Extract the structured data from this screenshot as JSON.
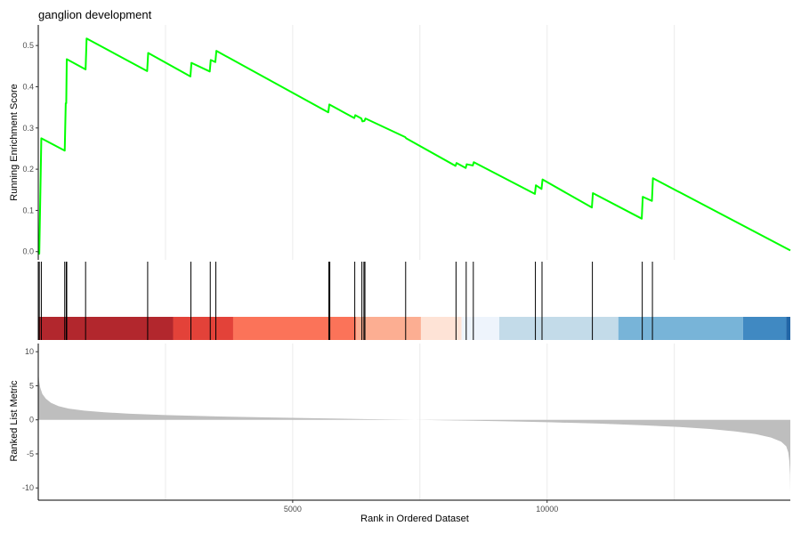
{
  "chart_data": {
    "type": "line",
    "title": "ganglion development",
    "xlabel": "Rank in Ordered Dataset",
    "n_genes": 14780,
    "xlim": [
      0,
      14780
    ],
    "x_ticks": [
      5000,
      10000
    ],
    "x_tick_labels": [
      "5000",
      "10000"
    ],
    "grid_lines_x": [
      2500,
      5000,
      7500,
      10000,
      12500
    ],
    "colors": {
      "running_score": "#00ff00",
      "ranked_metric_fill": "#bebebe",
      "hit_line": "#000000",
      "grid": "#ebebeb"
    },
    "running_score": {
      "ylabel": "Running Enrichment Score",
      "ylim": [
        -0.02,
        0.55
      ],
      "y_ticks": [
        0.0,
        0.1,
        0.2,
        0.3,
        0.4,
        0.5
      ],
      "y_tick_labels": [
        "0.0",
        "0.1",
        "0.2",
        "0.3",
        "0.4",
        "0.5"
      ],
      "x": [
        0,
        20,
        60,
        520,
        540,
        550,
        560,
        930,
        950,
        2140,
        2160,
        2990,
        3010,
        3370,
        3390,
        3480,
        3500,
        5700,
        5720,
        6210,
        6230,
        6350,
        6370,
        6410,
        6430,
        7210,
        7230,
        8200,
        8220,
        8400,
        8420,
        8540,
        8560,
        9760,
        9780,
        9890,
        9910,
        10880,
        10900,
        11860,
        11880,
        12060,
        12080,
        14780
      ],
      "y": [
        0.0,
        -0.005,
        0.275,
        0.245,
        0.36,
        0.36,
        0.467,
        0.442,
        0.517,
        0.438,
        0.482,
        0.425,
        0.458,
        0.437,
        0.465,
        0.46,
        0.487,
        0.338,
        0.357,
        0.324,
        0.331,
        0.323,
        0.316,
        0.317,
        0.323,
        0.278,
        0.275,
        0.208,
        0.215,
        0.203,
        0.212,
        0.209,
        0.217,
        0.14,
        0.161,
        0.152,
        0.175,
        0.107,
        0.142,
        0.08,
        0.133,
        0.123,
        0.178,
        0.003
      ]
    },
    "hits": {
      "positions": [
        20,
        60,
        520,
        550,
        560,
        930,
        2150,
        3000,
        3380,
        3490,
        5710,
        5730,
        6220,
        6360,
        6400,
        6420,
        7220,
        8210,
        8410,
        8550,
        9770,
        9900,
        10890,
        11870,
        12070
      ]
    },
    "ranked_color_bar": {
      "segments": [
        {
          "start": 0,
          "end": 2650,
          "color": "#b2272d"
        },
        {
          "start": 2650,
          "end": 3830,
          "color": "#e34239"
        },
        {
          "start": 3830,
          "end": 6250,
          "color": "#fb7359"
        },
        {
          "start": 6250,
          "end": 7520,
          "color": "#fcae92"
        },
        {
          "start": 7520,
          "end": 8320,
          "color": "#fee3d6"
        },
        {
          "start": 8320,
          "end": 9060,
          "color": "#eef4fc"
        },
        {
          "start": 9060,
          "end": 11400,
          "color": "#c3dbe9"
        },
        {
          "start": 11400,
          "end": 13850,
          "color": "#78b4d8"
        },
        {
          "start": 13850,
          "end": 14700,
          "color": "#4089c2"
        },
        {
          "start": 14700,
          "end": 14780,
          "color": "#2266a7"
        }
      ]
    },
    "ranked_metric": {
      "ylabel": "Ranked List Metric",
      "ylim": [
        -11.8,
        11.2
      ],
      "y_ticks": [
        10,
        5,
        0,
        -5,
        -10
      ],
      "y_tick_labels": [
        "10",
        "5",
        "0",
        "-5",
        "-10"
      ],
      "x": [
        0,
        5,
        15,
        40,
        80,
        150,
        250,
        400,
        600,
        900,
        1300,
        1800,
        2500,
        3500,
        4500,
        5500,
        6500,
        7400,
        8300,
        9200,
        10100,
        11000,
        11900,
        12600,
        13200,
        13700,
        14100,
        14400,
        14600,
        14700,
        14740,
        14760,
        14775,
        14780
      ],
      "y": [
        8.3,
        6.8,
        5.7,
        4.7,
        3.8,
        3.1,
        2.5,
        2.0,
        1.65,
        1.35,
        1.1,
        0.9,
        0.7,
        0.5,
        0.35,
        0.22,
        0.1,
        0.0,
        -0.1,
        -0.22,
        -0.37,
        -0.55,
        -0.8,
        -1.05,
        -1.35,
        -1.7,
        -2.1,
        -2.6,
        -3.2,
        -3.9,
        -4.8,
        -6.0,
        -8.0,
        -10.6
      ]
    }
  }
}
